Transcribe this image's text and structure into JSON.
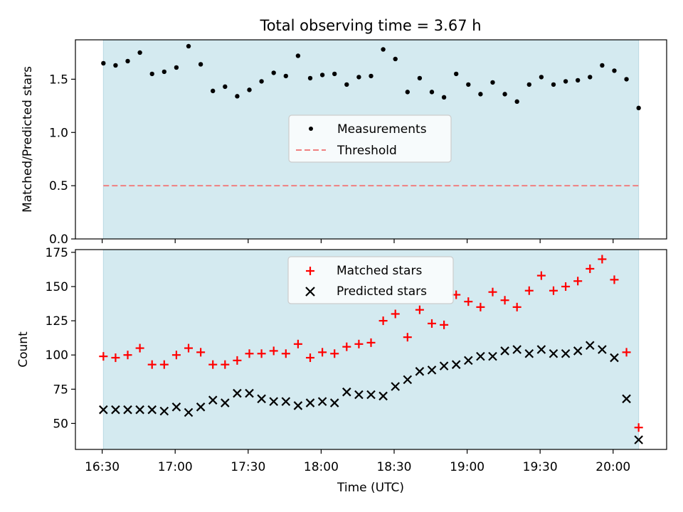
{
  "chart_data": {
    "type": "scatter",
    "title": "Total observing time = 3.67 h",
    "xlabel": "Time (UTC)",
    "x_ticks": [
      "16:30",
      "17:00",
      "17:30",
      "18:00",
      "18:30",
      "19:00",
      "19:30",
      "20:00"
    ],
    "x_tick_minutes": [
      990,
      1020,
      1050,
      1080,
      1110,
      1140,
      1170,
      1200
    ],
    "xlim_minutes": [
      979,
      1222
    ],
    "shaded_span_minutes": [
      990.5,
      1210.5
    ],
    "shade_color": "#d4eaf0",
    "times_minutes": [
      990.5,
      995.5,
      1000.5,
      1005.5,
      1010.5,
      1015.5,
      1020.5,
      1025.5,
      1030.5,
      1035.5,
      1040.5,
      1045.5,
      1050.5,
      1055.5,
      1060.5,
      1065.5,
      1070.5,
      1075.5,
      1080.5,
      1085.5,
      1090.5,
      1095.5,
      1100.5,
      1105.5,
      1110.5,
      1115.5,
      1120.5,
      1125.5,
      1130.5,
      1135.5,
      1140.5,
      1145.5,
      1150.5,
      1155.5,
      1160.5,
      1165.5,
      1170.5,
      1175.5,
      1180.5,
      1185.5,
      1190.5,
      1195.5,
      1200.5,
      1205.5,
      1210.5
    ],
    "panels": [
      {
        "ylabel": "Matched/Predicted stars",
        "ylim": [
          0,
          1.87
        ],
        "y_ticks": [
          "0.0",
          "0.5",
          "1.0",
          "1.5"
        ],
        "y_tick_values": [
          0,
          0.5,
          1.0,
          1.5
        ],
        "legend_position": "center",
        "series": [
          {
            "name": "Measurements",
            "marker": "dot",
            "color": "#000000",
            "values": [
              1.65,
              1.63,
              1.67,
              1.75,
              1.55,
              1.57,
              1.61,
              1.81,
              1.64,
              1.39,
              1.43,
              1.34,
              1.4,
              1.48,
              1.56,
              1.53,
              1.72,
              1.51,
              1.54,
              1.55,
              1.45,
              1.52,
              1.53,
              1.78,
              1.69,
              1.38,
              1.51,
              1.38,
              1.33,
              1.55,
              1.45,
              1.36,
              1.47,
              1.36,
              1.29,
              1.45,
              1.52,
              1.45,
              1.48,
              1.49,
              1.52,
              1.63,
              1.58,
              1.5,
              1.23
            ]
          }
        ],
        "threshold": {
          "name": "Threshold",
          "value": 0.5,
          "color": "#f08080"
        }
      },
      {
        "ylabel": "Count",
        "ylim": [
          31,
          177
        ],
        "y_ticks": [
          "50",
          "75",
          "100",
          "125",
          "150",
          "175"
        ],
        "y_tick_values": [
          50,
          75,
          100,
          125,
          150,
          175
        ],
        "legend_position": "top-center",
        "series": [
          {
            "name": "Matched stars",
            "marker": "plus",
            "color": "#ff0000",
            "values": [
              99,
              98,
              100,
              105,
              93,
              93,
              100,
              105,
              102,
              93,
              93,
              96,
              101,
              101,
              103,
              101,
              108,
              98,
              102,
              101,
              106,
              108,
              109,
              125,
              130,
              113,
              133,
              123,
              122,
              144,
              139,
              135,
              146,
              140,
              135,
              147,
              158,
              147,
              150,
              154,
              163,
              170,
              155,
              102,
              47
            ]
          },
          {
            "name": "Predicted stars",
            "marker": "x",
            "color": "#000000",
            "values": [
              60,
              60,
              60,
              60,
              60,
              59,
              62,
              58,
              62,
              67,
              65,
              72,
              72,
              68,
              66,
              66,
              63,
              65,
              66,
              65,
              73,
              71,
              71,
              70,
              77,
              82,
              88,
              89,
              92,
              93,
              96,
              99,
              99,
              103,
              104,
              101,
              104,
              101,
              101,
              103,
              107,
              104,
              98,
              68,
              38
            ]
          }
        ]
      }
    ]
  }
}
